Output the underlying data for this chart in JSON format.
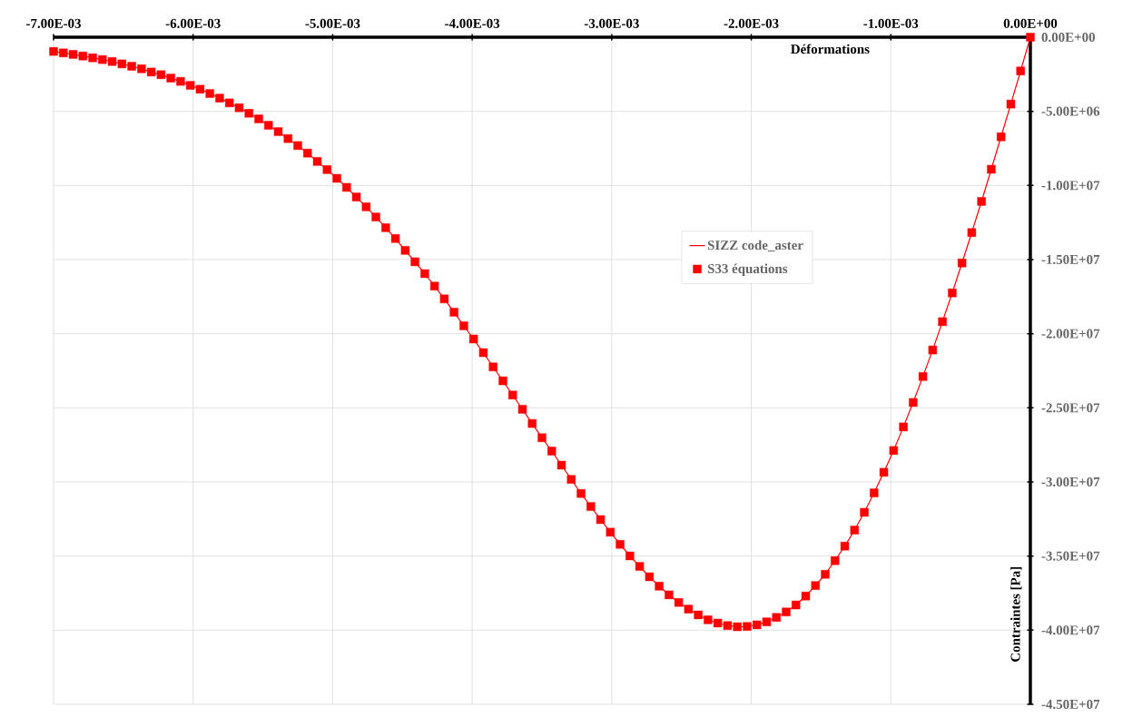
{
  "chart_data": {
    "type": "line",
    "xlabel": "Déformations",
    "ylabel": "Contraintes [Pa]",
    "x": [
      -0.007,
      -0.00693,
      -0.00686,
      -0.00679,
      -0.00672,
      -0.00665,
      -0.00658,
      -0.00651,
      -0.00644,
      -0.00637,
      -0.0063,
      -0.00623,
      -0.00616,
      -0.00609,
      -0.00602,
      -0.00595,
      -0.00588,
      -0.00581,
      -0.00574,
      -0.00567,
      -0.0056,
      -0.00553,
      -0.00546,
      -0.00539,
      -0.00532,
      -0.00525,
      -0.00518,
      -0.00511,
      -0.00504,
      -0.00497,
      -0.0049,
      -0.00483,
      -0.00476,
      -0.00469,
      -0.00462,
      -0.00455,
      -0.00448,
      -0.00441,
      -0.00434,
      -0.00427,
      -0.0042,
      -0.00413,
      -0.00406,
      -0.00399,
      -0.00392,
      -0.00385,
      -0.00378,
      -0.00371,
      -0.00364,
      -0.00357,
      -0.0035,
      -0.00343,
      -0.00336,
      -0.00329,
      -0.00322,
      -0.00315,
      -0.00308,
      -0.00301,
      -0.00294,
      -0.00287,
      -0.0028,
      -0.00273,
      -0.00266,
      -0.00259,
      -0.00252,
      -0.00245,
      -0.00238,
      -0.00231,
      -0.00224,
      -0.00217,
      -0.0021,
      -0.00203,
      -0.00196,
      -0.00189,
      -0.00182,
      -0.00175,
      -0.00168,
      -0.00161,
      -0.00154,
      -0.00147,
      -0.0014,
      -0.00133,
      -0.00126,
      -0.00119,
      -0.00112,
      -0.00105,
      -0.00098,
      -0.00091,
      -0.00084,
      -0.00077,
      -0.0007,
      -0.00063,
      -0.00056,
      -0.00049,
      -0.00042,
      -0.00035,
      -0.00028,
      -0.00021,
      -0.00014,
      -7e-05,
      0
    ],
    "series": [
      {
        "name": "SIZZ code_aster",
        "color": "#ff0000",
        "marker": "none",
        "line_style": "solid",
        "values": [
          -960000,
          -1060000,
          -1160000,
          -1270000,
          -1390000,
          -1510000,
          -1640000,
          -1800000,
          -1960000,
          -2130000,
          -2350000,
          -2530000,
          -2760000,
          -2980000,
          -3250000,
          -3510000,
          -3800000,
          -4110000,
          -4430000,
          -4760000,
          -5130000,
          -5510000,
          -5940000,
          -6370000,
          -6840000,
          -7310000,
          -7820000,
          -8380000,
          -8930000,
          -9520000,
          -10130000,
          -10780000,
          -11440000,
          -12130000,
          -12850000,
          -13580000,
          -14380000,
          -15150000,
          -15950000,
          -16790000,
          -17650000,
          -18550000,
          -19470000,
          -20360000,
          -21280000,
          -22240000,
          -23180000,
          -24140000,
          -25100000,
          -26060000,
          -27020000,
          -27920000,
          -28870000,
          -29830000,
          -30780000,
          -31660000,
          -32540000,
          -33390000,
          -34210000,
          -34990000,
          -35700000,
          -36400000,
          -37030000,
          -37620000,
          -38130000,
          -38580000,
          -38970000,
          -39300000,
          -39520000,
          -39690000,
          -39770000,
          -39750000,
          -39640000,
          -39440000,
          -39140000,
          -38770000,
          -38300000,
          -37700000,
          -36990000,
          -36230000,
          -35310000,
          -34330000,
          -33250000,
          -32050000,
          -30740000,
          -29350000,
          -27880000,
          -26290000,
          -24640000,
          -22890000,
          -21100000,
          -19190000,
          -17250000,
          -15230000,
          -13180000,
          -11080000,
          -8910000,
          -6720000,
          -4510000,
          -2280000,
          0
        ]
      },
      {
        "name": "S33 équations",
        "type": "scatter",
        "color": "#ff0000",
        "marker": "square",
        "values": [
          -960000,
          -1060000,
          -1160000,
          -1270000,
          -1390000,
          -1510000,
          -1640000,
          -1800000,
          -1960000,
          -2130000,
          -2350000,
          -2530000,
          -2760000,
          -2980000,
          -3250000,
          -3510000,
          -3800000,
          -4110000,
          -4430000,
          -4760000,
          -5130000,
          -5510000,
          -5940000,
          -6370000,
          -6840000,
          -7310000,
          -7820000,
          -8380000,
          -8930000,
          -9520000,
          -10130000,
          -10780000,
          -11440000,
          -12130000,
          -12850000,
          -13580000,
          -14380000,
          -15150000,
          -15950000,
          -16790000,
          -17650000,
          -18550000,
          -19470000,
          -20360000,
          -21280000,
          -22240000,
          -23180000,
          -24140000,
          -25100000,
          -26060000,
          -27020000,
          -27920000,
          -28870000,
          -29830000,
          -30780000,
          -31660000,
          -32540000,
          -33390000,
          -34210000,
          -34990000,
          -35700000,
          -36400000,
          -37030000,
          -37620000,
          -38130000,
          -38580000,
          -38970000,
          -39300000,
          -39520000,
          -39690000,
          -39770000,
          -39750000,
          -39640000,
          -39440000,
          -39140000,
          -38770000,
          -38300000,
          -37700000,
          -36990000,
          -36230000,
          -35310000,
          -34330000,
          -33250000,
          -32050000,
          -30740000,
          -29350000,
          -27880000,
          -26290000,
          -24640000,
          -22890000,
          -21100000,
          -19190000,
          -17250000,
          -15230000,
          -13180000,
          -11080000,
          -8910000,
          -6720000,
          -4510000,
          -2280000,
          0
        ]
      }
    ],
    "xlim": [
      -0.007,
      0
    ],
    "ylim": [
      -45000000,
      0
    ],
    "xticks": [
      {
        "value": -0.007,
        "label": "-7.00E-03"
      },
      {
        "value": -0.006,
        "label": "-6.00E-03"
      },
      {
        "value": -0.005,
        "label": "-5.00E-03"
      },
      {
        "value": -0.004,
        "label": "-4.00E-03"
      },
      {
        "value": -0.003,
        "label": "-3.00E-03"
      },
      {
        "value": -0.002,
        "label": "-2.00E-03"
      },
      {
        "value": -0.001,
        "label": "-1.00E-03"
      },
      {
        "value": 0,
        "label": "0.00E+00"
      }
    ],
    "yticks": [
      {
        "value": 0,
        "label": "0.00E+00"
      },
      {
        "value": -5000000,
        "label": "-5.00E+06"
      },
      {
        "value": -10000000,
        "label": "-1.00E+07"
      },
      {
        "value": -15000000,
        "label": "-1.50E+07"
      },
      {
        "value": -20000000,
        "label": "-2.00E+07"
      },
      {
        "value": -25000000,
        "label": "-2.50E+07"
      },
      {
        "value": -30000000,
        "label": "-3.00E+07"
      },
      {
        "value": -35000000,
        "label": "-3.50E+07"
      },
      {
        "value": -40000000,
        "label": "-4.00E+07"
      },
      {
        "value": -45000000,
        "label": "-4.50E+07"
      }
    ],
    "grid": true,
    "legend": "right"
  }
}
